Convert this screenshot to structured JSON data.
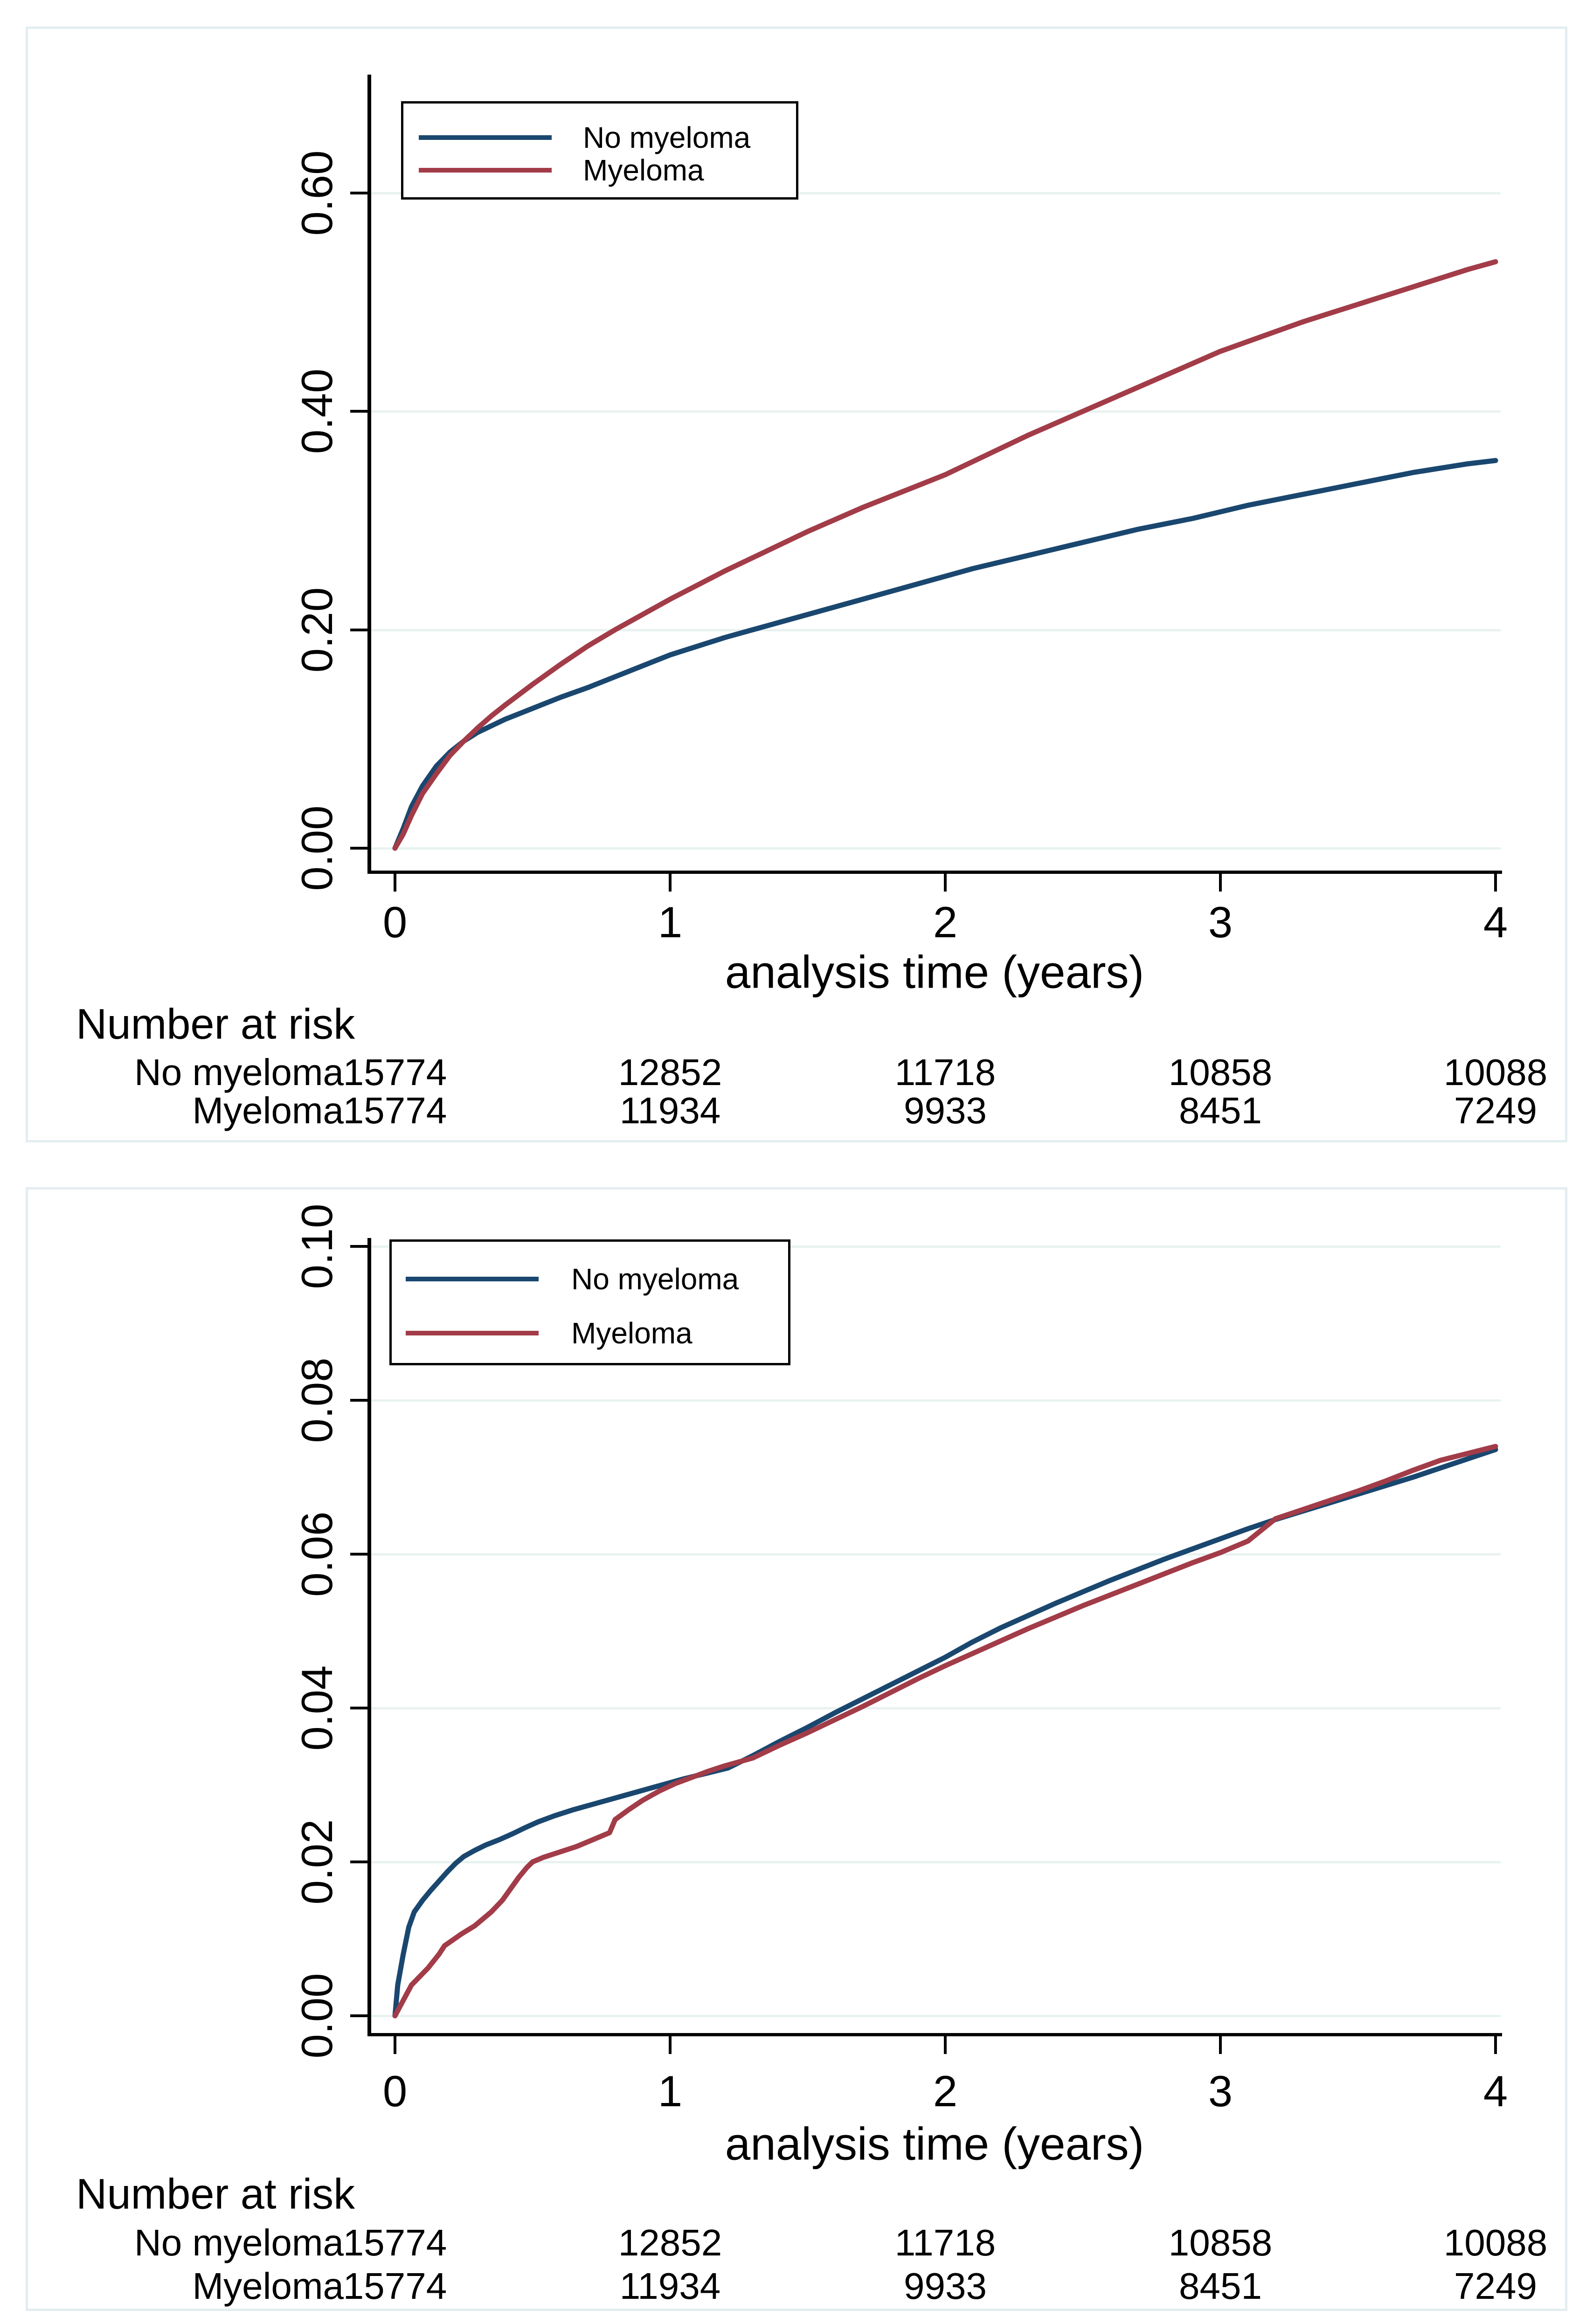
{
  "colors": {
    "no_myeloma": "#1a476f",
    "myeloma": "#a23c48",
    "grid": "#e8f2f1",
    "panel_border": "#e2edf0",
    "axis": "#000000",
    "legend_border": "#000000",
    "background": "#ffffff"
  },
  "chart_data": [
    {
      "id": "cumulative-incidence-full-scale",
      "type": "line",
      "xlabel": "analysis time (years)",
      "x_ticks": [
        0,
        1,
        2,
        3,
        4
      ],
      "x_tick_labels": [
        "0",
        "1",
        "2",
        "3",
        "4"
      ],
      "ylim": [
        0,
        0.6
      ],
      "xlim": [
        0,
        4
      ],
      "grid": true,
      "y_ticks": [
        0.0,
        0.2,
        0.4,
        0.6
      ],
      "y_tick_labels": [
        "0.00",
        "0.20",
        "0.40",
        "0.60"
      ],
      "legend_position": "top-left-inside",
      "series": [
        {
          "name": "No myeloma",
          "color_key": "no_myeloma",
          "points": [
            [
              0,
              0
            ],
            [
              0.03,
              0.018
            ],
            [
              0.06,
              0.038
            ],
            [
              0.1,
              0.057
            ],
            [
              0.15,
              0.075
            ],
            [
              0.2,
              0.088
            ],
            [
              0.25,
              0.098
            ],
            [
              0.3,
              0.106
            ],
            [
              0.35,
              0.112
            ],
            [
              0.4,
              0.118
            ],
            [
              0.5,
              0.128
            ],
            [
              0.6,
              0.138
            ],
            [
              0.7,
              0.147
            ],
            [
              0.8,
              0.157
            ],
            [
              0.9,
              0.167
            ],
            [
              1.0,
              0.177
            ],
            [
              1.1,
              0.185
            ],
            [
              1.2,
              0.193
            ],
            [
              1.3,
              0.2
            ],
            [
              1.4,
              0.207
            ],
            [
              1.5,
              0.214
            ],
            [
              1.6,
              0.221
            ],
            [
              1.7,
              0.228
            ],
            [
              1.8,
              0.235
            ],
            [
              1.9,
              0.242
            ],
            [
              2.0,
              0.249
            ],
            [
              2.1,
              0.256
            ],
            [
              2.2,
              0.262
            ],
            [
              2.3,
              0.268
            ],
            [
              2.4,
              0.274
            ],
            [
              2.5,
              0.28
            ],
            [
              2.6,
              0.286
            ],
            [
              2.7,
              0.292
            ],
            [
              2.8,
              0.297
            ],
            [
              2.9,
              0.302
            ],
            [
              3.0,
              0.308
            ],
            [
              3.1,
              0.314
            ],
            [
              3.2,
              0.319
            ],
            [
              3.3,
              0.324
            ],
            [
              3.4,
              0.329
            ],
            [
              3.5,
              0.334
            ],
            [
              3.6,
              0.339
            ],
            [
              3.7,
              0.344
            ],
            [
              3.8,
              0.348
            ],
            [
              3.9,
              0.352
            ],
            [
              4.0,
              0.355
            ]
          ]
        },
        {
          "name": "Myeloma",
          "color_key": "myeloma",
          "points": [
            [
              0,
              0
            ],
            [
              0.03,
              0.013
            ],
            [
              0.06,
              0.03
            ],
            [
              0.1,
              0.05
            ],
            [
              0.15,
              0.068
            ],
            [
              0.2,
              0.085
            ],
            [
              0.25,
              0.098
            ],
            [
              0.3,
              0.11
            ],
            [
              0.35,
              0.121
            ],
            [
              0.4,
              0.131
            ],
            [
              0.5,
              0.15
            ],
            [
              0.6,
              0.168
            ],
            [
              0.7,
              0.185
            ],
            [
              0.8,
              0.2
            ],
            [
              0.9,
              0.214
            ],
            [
              1.0,
              0.228
            ],
            [
              1.1,
              0.241
            ],
            [
              1.2,
              0.254
            ],
            [
              1.3,
              0.266
            ],
            [
              1.4,
              0.278
            ],
            [
              1.5,
              0.29
            ],
            [
              1.6,
              0.301
            ],
            [
              1.7,
              0.312
            ],
            [
              1.8,
              0.322
            ],
            [
              1.9,
              0.332
            ],
            [
              2.0,
              0.342
            ],
            [
              2.1,
              0.354
            ],
            [
              2.2,
              0.366
            ],
            [
              2.3,
              0.378
            ],
            [
              2.4,
              0.389
            ],
            [
              2.5,
              0.4
            ],
            [
              2.6,
              0.411
            ],
            [
              2.7,
              0.422
            ],
            [
              2.8,
              0.433
            ],
            [
              2.9,
              0.444
            ],
            [
              3.0,
              0.455
            ],
            [
              3.1,
              0.464
            ],
            [
              3.2,
              0.473
            ],
            [
              3.3,
              0.482
            ],
            [
              3.4,
              0.49
            ],
            [
              3.5,
              0.498
            ],
            [
              3.6,
              0.506
            ],
            [
              3.7,
              0.514
            ],
            [
              3.8,
              0.522
            ],
            [
              3.9,
              0.53
            ],
            [
              4.0,
              0.537
            ]
          ]
        }
      ],
      "risk_table": {
        "title": "Number at risk",
        "time_points": [
          0,
          1,
          2,
          3,
          4
        ],
        "rows": [
          {
            "label": "No myeloma",
            "values": [
              "15774",
              "12852",
              "11718",
              "10858",
              "10088"
            ]
          },
          {
            "label": "Myeloma",
            "values": [
              "15774",
              "11934",
              "9933",
              "8451",
              "7249"
            ]
          }
        ]
      }
    },
    {
      "id": "cumulative-incidence-zoomed-scale",
      "type": "line",
      "xlabel": "analysis time (years)",
      "x_ticks": [
        0,
        1,
        2,
        3,
        4
      ],
      "x_tick_labels": [
        "0",
        "1",
        "2",
        "3",
        "4"
      ],
      "ylim": [
        0,
        0.1
      ],
      "xlim": [
        0,
        4
      ],
      "grid": true,
      "y_ticks": [
        0.0,
        0.02,
        0.04,
        0.06,
        0.08,
        0.1
      ],
      "y_tick_labels": [
        "0.00",
        "0.02",
        "0.04",
        "0.06",
        "0.08",
        "0.10"
      ],
      "legend_position": "top-left-inside",
      "series": [
        {
          "name": "No myeloma",
          "color_key": "no_myeloma",
          "points": [
            [
              0,
              0
            ],
            [
              0.01,
              0.004
            ],
            [
              0.03,
              0.008
            ],
            [
              0.05,
              0.0115
            ],
            [
              0.07,
              0.0135
            ],
            [
              0.1,
              0.015
            ],
            [
              0.13,
              0.0163
            ],
            [
              0.16,
              0.0175
            ],
            [
              0.19,
              0.0187
            ],
            [
              0.22,
              0.0198
            ],
            [
              0.25,
              0.0207
            ],
            [
              0.29,
              0.0215
            ],
            [
              0.33,
              0.0222
            ],
            [
              0.38,
              0.0229
            ],
            [
              0.43,
              0.0237
            ],
            [
              0.47,
              0.0244
            ],
            [
              0.52,
              0.0252
            ],
            [
              0.58,
              0.026
            ],
            [
              0.65,
              0.0268
            ],
            [
              0.72,
              0.0275
            ],
            [
              0.8,
              0.0283
            ],
            [
              0.89,
              0.0292
            ],
            [
              0.97,
              0.03
            ],
            [
              1.05,
              0.0308
            ],
            [
              1.13,
              0.0315
            ],
            [
              1.21,
              0.0322
            ],
            [
              1.3,
              0.0338
            ],
            [
              1.4,
              0.0357
            ],
            [
              1.5,
              0.0375
            ],
            [
              1.6,
              0.0394
            ],
            [
              1.7,
              0.0412
            ],
            [
              1.8,
              0.043
            ],
            [
              1.9,
              0.0448
            ],
            [
              2.0,
              0.0466
            ],
            [
              2.1,
              0.0486
            ],
            [
              2.2,
              0.0504
            ],
            [
              2.3,
              0.052
            ],
            [
              2.4,
              0.0536
            ],
            [
              2.5,
              0.0551
            ],
            [
              2.6,
              0.0566
            ],
            [
              2.7,
              0.058
            ],
            [
              2.8,
              0.0594
            ],
            [
              2.9,
              0.0607
            ],
            [
              3.0,
              0.062
            ],
            [
              3.1,
              0.0633
            ],
            [
              3.2,
              0.0645
            ],
            [
              3.3,
              0.0656
            ],
            [
              3.4,
              0.0667
            ],
            [
              3.5,
              0.0678
            ],
            [
              3.6,
              0.0689
            ],
            [
              3.7,
              0.07
            ],
            [
              3.8,
              0.0712
            ],
            [
              3.9,
              0.0724
            ],
            [
              4.0,
              0.0736
            ]
          ]
        },
        {
          "name": "Myeloma",
          "color_key": "myeloma",
          "points": [
            [
              0,
              0
            ],
            [
              0.03,
              0.002
            ],
            [
              0.06,
              0.004
            ],
            [
              0.12,
              0.0062
            ],
            [
              0.16,
              0.008
            ],
            [
              0.18,
              0.0091
            ],
            [
              0.24,
              0.0106
            ],
            [
              0.29,
              0.0117
            ],
            [
              0.35,
              0.0135
            ],
            [
              0.39,
              0.015
            ],
            [
              0.42,
              0.0165
            ],
            [
              0.45,
              0.018
            ],
            [
              0.48,
              0.0193
            ],
            [
              0.5,
              0.02
            ],
            [
              0.54,
              0.0206
            ],
            [
              0.6,
              0.0213
            ],
            [
              0.66,
              0.022
            ],
            [
              0.72,
              0.0229
            ],
            [
              0.78,
              0.0238
            ],
            [
              0.8,
              0.0255
            ],
            [
              0.85,
              0.0268
            ],
            [
              0.9,
              0.028
            ],
            [
              0.96,
              0.0292
            ],
            [
              1.02,
              0.0302
            ],
            [
              1.08,
              0.031
            ],
            [
              1.14,
              0.0318
            ],
            [
              1.2,
              0.0325
            ],
            [
              1.3,
              0.0335
            ],
            [
              1.4,
              0.0352
            ],
            [
              1.5,
              0.0368
            ],
            [
              1.6,
              0.0385
            ],
            [
              1.7,
              0.0402
            ],
            [
              1.8,
              0.042
            ],
            [
              1.9,
              0.0438
            ],
            [
              2.0,
              0.0455
            ],
            [
              2.1,
              0.0471
            ],
            [
              2.2,
              0.0487
            ],
            [
              2.3,
              0.0503
            ],
            [
              2.4,
              0.0518
            ],
            [
              2.5,
              0.0533
            ],
            [
              2.6,
              0.0547
            ],
            [
              2.7,
              0.0561
            ],
            [
              2.8,
              0.0575
            ],
            [
              2.9,
              0.0589
            ],
            [
              3.0,
              0.0602
            ],
            [
              3.1,
              0.0617
            ],
            [
              3.2,
              0.0646
            ],
            [
              3.3,
              0.0658
            ],
            [
              3.4,
              0.067
            ],
            [
              3.5,
              0.0682
            ],
            [
              3.6,
              0.0695
            ],
            [
              3.7,
              0.0709
            ],
            [
              3.8,
              0.0722
            ],
            [
              3.9,
              0.0731
            ],
            [
              4.0,
              0.074
            ]
          ]
        }
      ],
      "risk_table": {
        "title": "Number at risk",
        "time_points": [
          0,
          1,
          2,
          3,
          4
        ],
        "rows": [
          {
            "label": "No myeloma",
            "values": [
              "15774",
              "12852",
              "11718",
              "10858",
              "10088"
            ]
          },
          {
            "label": "Myeloma",
            "values": [
              "15774",
              "11934",
              "9933",
              "8451",
              "7249"
            ]
          }
        ]
      }
    }
  ]
}
